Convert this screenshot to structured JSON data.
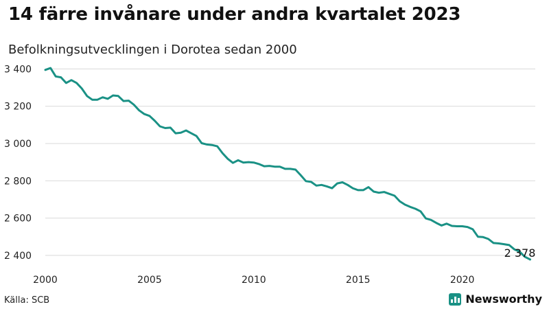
{
  "header": {
    "title": "14 färre invånare under andra kvartalet 2023",
    "subtitle": "Befolkningsutvecklingen i Dorotea sedan 2000"
  },
  "footer": {
    "source": "Källa: SCB",
    "brand": "Newsworthy",
    "brand_icon": "bar-chart-icon"
  },
  "colors": {
    "line": "#1a9185",
    "grid": "#d9d9d9",
    "brand": "#1a9185"
  },
  "chart_data": {
    "type": "line",
    "title": "14 färre invånare under andra kvartalet 2023",
    "subtitle": "Befolkningsutvecklingen i Dorotea sedan 2000",
    "xlabel": "",
    "ylabel": "",
    "xlim": [
      2000,
      2023.5
    ],
    "ylim": [
      2370,
      3420
    ],
    "x_ticks": [
      2000,
      2005,
      2010,
      2015,
      2020
    ],
    "x_tick_labels": [
      "2000",
      "2005",
      "2010",
      "2015",
      "2020"
    ],
    "y_ticks": [
      2400,
      2600,
      2800,
      3000,
      3200,
      3400
    ],
    "y_tick_labels": [
      "2 400",
      "2 600",
      "2 800",
      "3 000",
      "3 200",
      "3 400"
    ],
    "grid": "horizontal",
    "end_label": "2 378",
    "series": [
      {
        "x": [
          2000.0,
          2000.25,
          2000.5,
          2000.75,
          2001.0,
          2001.25,
          2001.5,
          2001.75,
          2002.0,
          2002.25,
          2002.5,
          2002.75,
          2003.0,
          2003.25,
          2003.5,
          2003.75,
          2004.0,
          2004.25,
          2004.5,
          2004.75,
          2005.0,
          2005.25,
          2005.5,
          2005.75,
          2006.0,
          2006.25,
          2006.5,
          2006.75,
          2007.0,
          2007.25,
          2007.5,
          2007.75,
          2008.0,
          2008.25,
          2008.5,
          2008.75,
          2009.0,
          2009.25,
          2009.5,
          2009.75,
          2010.0,
          2010.25,
          2010.5,
          2010.75,
          2011.0,
          2011.25,
          2011.5,
          2011.75,
          2012.0,
          2012.25,
          2012.5,
          2012.75,
          2013.0,
          2013.25,
          2013.5,
          2013.75,
          2014.0,
          2014.25,
          2014.5,
          2014.75,
          2015.0,
          2015.25,
          2015.5,
          2015.75,
          2016.0,
          2016.25,
          2016.5,
          2016.75,
          2017.0,
          2017.25,
          2017.5,
          2017.75,
          2018.0,
          2018.25,
          2018.5,
          2018.75,
          2019.0,
          2019.25,
          2019.5,
          2019.75,
          2020.0,
          2020.25,
          2020.5,
          2020.75,
          2021.0,
          2021.25,
          2021.5,
          2021.75,
          2022.0,
          2022.25,
          2022.5,
          2022.75,
          2023.0,
          2023.25
        ],
        "y": [
          3395,
          3405,
          3360,
          3355,
          3325,
          3340,
          3325,
          3295,
          3255,
          3235,
          3235,
          3248,
          3240,
          3258,
          3255,
          3228,
          3230,
          3208,
          3178,
          3158,
          3148,
          3122,
          3092,
          3083,
          3085,
          3055,
          3058,
          3070,
          3055,
          3040,
          3002,
          2995,
          2992,
          2985,
          2948,
          2918,
          2896,
          2910,
          2898,
          2900,
          2898,
          2890,
          2878,
          2880,
          2876,
          2876,
          2864,
          2864,
          2860,
          2830,
          2798,
          2794,
          2774,
          2778,
          2770,
          2760,
          2786,
          2792,
          2778,
          2760,
          2750,
          2750,
          2766,
          2742,
          2736,
          2740,
          2730,
          2720,
          2690,
          2672,
          2660,
          2650,
          2636,
          2598,
          2590,
          2574,
          2560,
          2570,
          2558,
          2556,
          2556,
          2552,
          2540,
          2500,
          2498,
          2488,
          2466,
          2464,
          2460,
          2455,
          2432,
          2420,
          2392,
          2378
        ]
      }
    ]
  }
}
